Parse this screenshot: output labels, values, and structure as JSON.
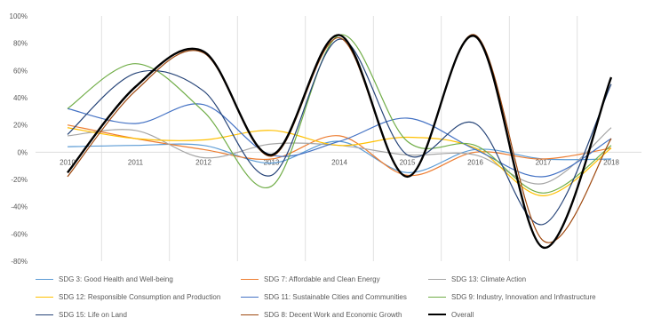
{
  "chart_data": {
    "type": "line",
    "title": "",
    "xlabel": "",
    "ylabel": "",
    "x": [
      "2010",
      "2011",
      "2012",
      "2013",
      "2014",
      "2015",
      "2016",
      "2017",
      "2018"
    ],
    "y_ticks": [
      "100%",
      "80%",
      "60%",
      "40%",
      "20%",
      "0%",
      "-20%",
      "-40%",
      "-60%",
      "-80%"
    ],
    "ylim": [
      -80,
      100
    ],
    "grid": "vertical",
    "legend_position": "bottom",
    "series": [
      {
        "name": "SDG 3: Good Health and Well-being",
        "color": "#5b9bd5",
        "width": 1.2,
        "values": [
          4,
          5,
          5,
          -8,
          8,
          -15,
          2,
          -5,
          -5
        ]
      },
      {
        "name": "SDG 7: Affordable and Clean Energy",
        "color": "#ed7d31",
        "width": 1.2,
        "values": [
          20,
          10,
          2,
          -5,
          12,
          -17,
          0,
          -5,
          3
        ]
      },
      {
        "name": "SDG 13: Climate Action",
        "color": "#a5a5a5",
        "width": 1.2,
        "values": [
          12,
          16,
          -4,
          6,
          5,
          -2,
          -2,
          -23,
          18
        ]
      },
      {
        "name": "SDG 12: Responsible Consumption and Production",
        "color": "#ffc000",
        "width": 1.2,
        "values": [
          18,
          10,
          9,
          16,
          5,
          11,
          3,
          -32,
          3
        ]
      },
      {
        "name": "SDG 11: Sustainable Cities and Communities",
        "color": "#4472c4",
        "width": 1.2,
        "values": [
          32,
          21,
          35,
          -2,
          8,
          25,
          2,
          -18,
          10
        ]
      },
      {
        "name": "SDG 9: Industry, Innovation and Infrastructure",
        "color": "#70ad47",
        "width": 1.2,
        "values": [
          32,
          65,
          30,
          -25,
          86,
          8,
          5,
          -30,
          5
        ]
      },
      {
        "name": "SDG 15: Life on Land",
        "color": "#264478",
        "width": 1.2,
        "values": [
          13,
          58,
          45,
          -17,
          83,
          -2,
          21,
          -53,
          50
        ]
      },
      {
        "name": "SDG 8: Decent Work and Economic Growth",
        "color": "#9e480e",
        "width": 1.2,
        "values": [
          -18,
          45,
          73,
          -3,
          84,
          -18,
          86,
          -65,
          10
        ]
      },
      {
        "name": "Overall",
        "color": "#000000",
        "width": 2.4,
        "values": [
          -15,
          48,
          74,
          -2,
          86,
          -18,
          85,
          -70,
          55
        ]
      }
    ]
  }
}
